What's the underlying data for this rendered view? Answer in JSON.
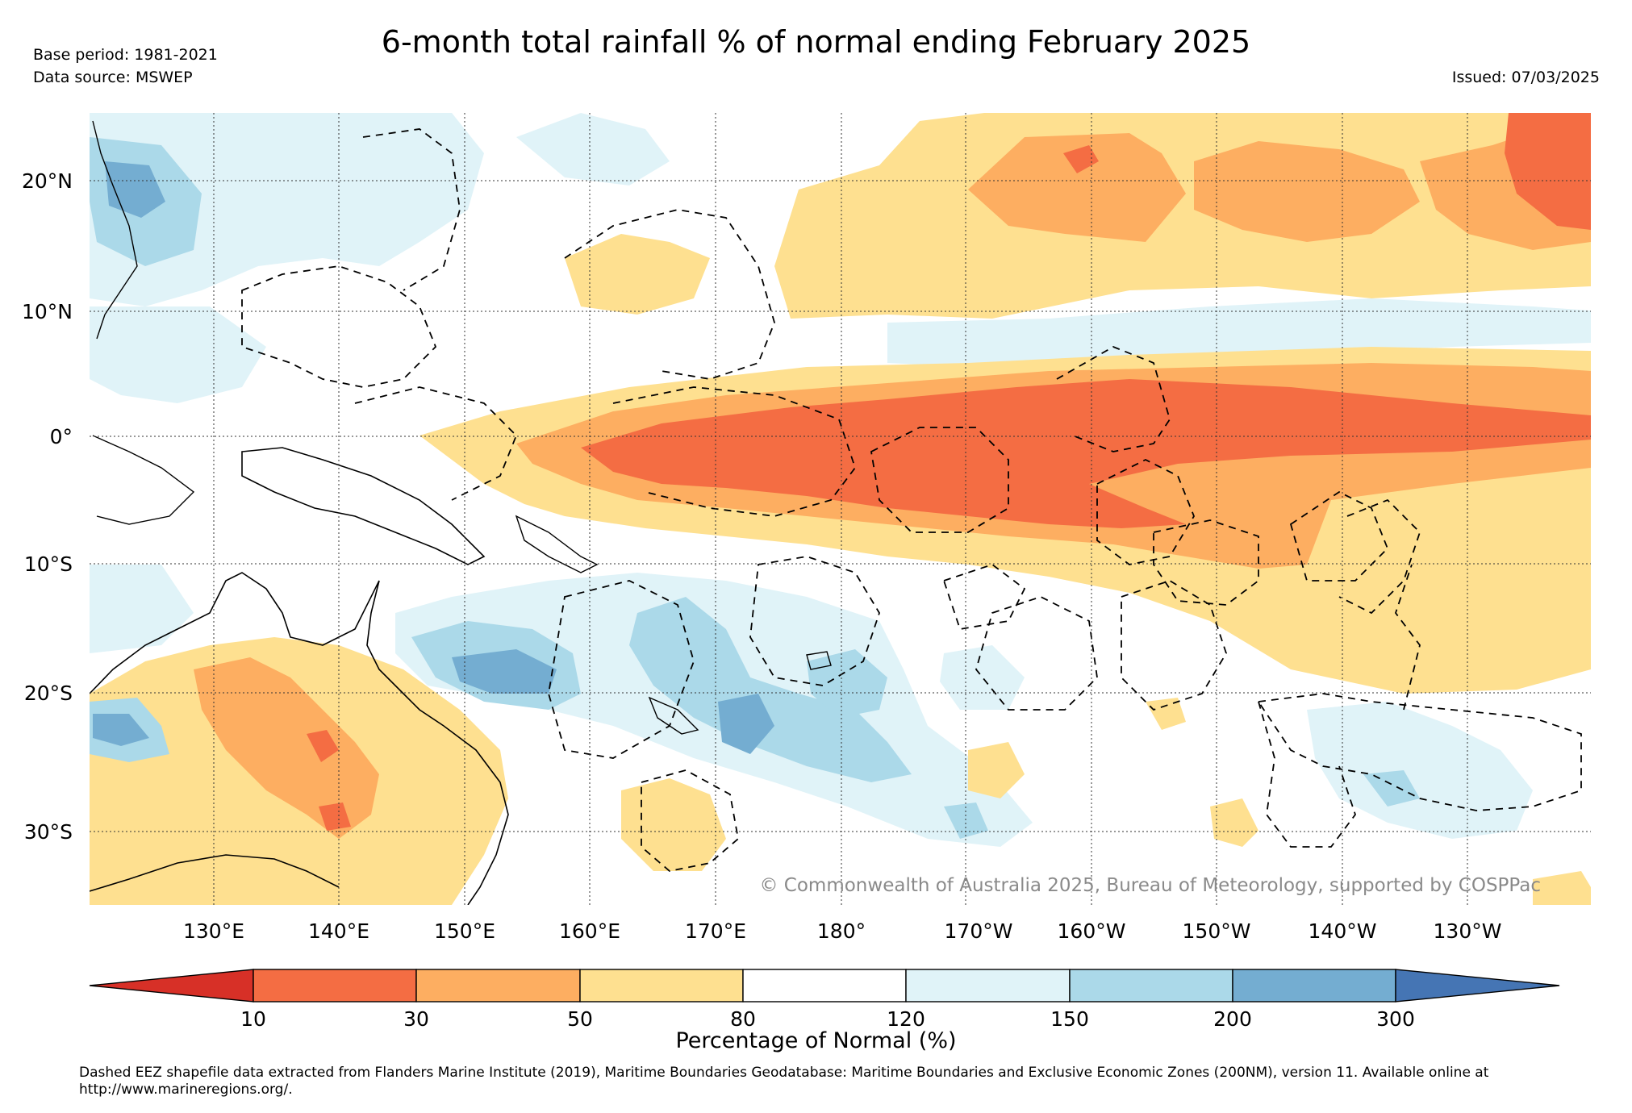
{
  "title": "6-month total rainfall % of normal ending February 2025",
  "base_period": "Base period: 1981-2021",
  "data_source": "Data source: MSWEP",
  "issued": "Issued: 07/03/2025",
  "copyright": "© Commonwealth of Australia 2025, Bureau of Meteorology, supported by COSPPac",
  "colorbar": {
    "label": "Percentage of Normal (%)",
    "ticks": [
      "10",
      "30",
      "50",
      "80",
      "120",
      "150",
      "200",
      "300"
    ],
    "colors": [
      "#d73027",
      "#f46d43",
      "#fdae61",
      "#fee090",
      "#ffffff",
      "#e0f3f8",
      "#abd9e9",
      "#74add1",
      "#4575b4"
    ]
  },
  "axes": {
    "lat_labels": [
      "20°N",
      "10°N",
      "0°",
      "10°S",
      "20°S",
      "30°S"
    ],
    "lon_labels": [
      "130°E",
      "140°E",
      "150°E",
      "160°E",
      "170°E",
      "180°",
      "170°W",
      "160°W",
      "150°W",
      "140°W",
      "130°W"
    ]
  },
  "footnote": "Dashed EEZ shapefile data extracted from Flanders Marine Institute (2019), Maritime Boundaries Geodatabase: Maritime Boundaries and Exclusive Economic Zones (200NM), version 11. Available online at http://www.marineregions.org/."
}
